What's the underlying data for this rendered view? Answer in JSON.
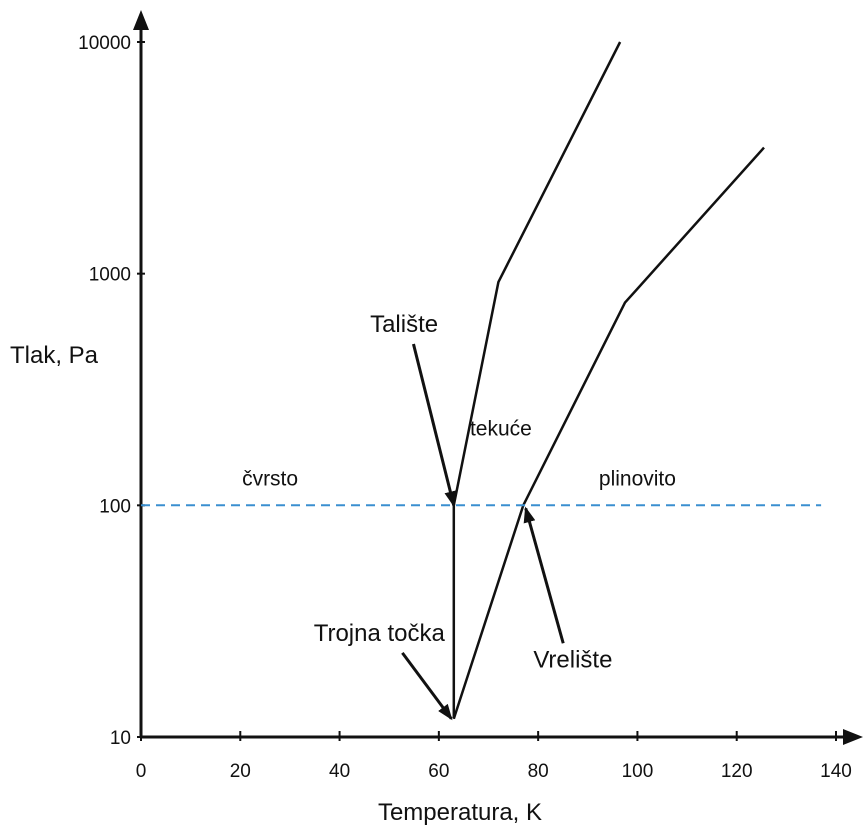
{
  "chart_data": {
    "type": "line",
    "xlabel": "Temperatura, K",
    "ylabel": "Tlak, Pa",
    "xlim": [
      0,
      140
    ],
    "ylim": [
      10,
      10000
    ],
    "y_scale": "log",
    "x_ticks": [
      0,
      20,
      40,
      60,
      80,
      100,
      120,
      140
    ],
    "y_ticks": [
      10,
      100,
      1000,
      10000
    ],
    "x_tick_labels": [
      "0",
      "20",
      "40",
      "60",
      "80",
      "100",
      "120",
      "140"
    ],
    "y_tick_labels": [
      "10",
      "100",
      "1000",
      "10000"
    ],
    "grid": false,
    "series": [
      {
        "color": "#111111",
        "dash": false,
        "x": [
          63,
          72,
          96.5
        ],
        "y": [
          100,
          920,
          10000
        ]
      },
      {
        "color": "#111111",
        "dash": false,
        "x": [
          63,
          77,
          97.5,
          125.5
        ],
        "y": [
          12,
          100,
          750,
          3500
        ]
      },
      {
        "color": "#111111",
        "dash": false,
        "x": [
          63,
          63
        ],
        "y": [
          12,
          100
        ]
      },
      {
        "color": "#3a8fd0",
        "dash": true,
        "x": [
          0,
          137
        ],
        "y": [
          100,
          100
        ]
      }
    ],
    "regions": [
      {
        "text": "čvrsto",
        "x": 26,
        "y": 122
      },
      {
        "text": "tekuće",
        "x": 72.5,
        "y": 200
      },
      {
        "text": "plinovito",
        "x": 100,
        "y": 122
      }
    ],
    "annotations": [
      {
        "text": "Talište",
        "text_x": 53,
        "text_y": 560,
        "target_x": 63,
        "target_y": 100
      },
      {
        "text": "Trojna točka",
        "text_x": 48,
        "text_y": 26,
        "target_x": 62.5,
        "target_y": 12
      },
      {
        "text": "Vrelište",
        "text_x": 87,
        "text_y": 20,
        "target_x": 77.5,
        "target_y": 97
      }
    ]
  }
}
